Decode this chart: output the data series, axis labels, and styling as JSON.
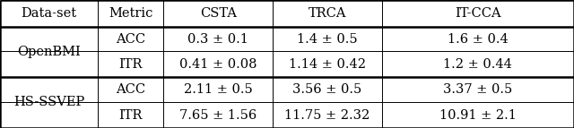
{
  "col_headers": [
    "Data-set",
    "Metric",
    "CSTA",
    "TRCA",
    "IT-CCA"
  ],
  "row_groups": [
    {
      "group_label": "OpenBMI",
      "rows": [
        [
          "ACC",
          "0.3 ± 0.1",
          "1.4 ± 0.5",
          "1.6 ± 0.4"
        ],
        [
          "ITR",
          "0.41 ± 0.08",
          "1.14 ± 0.42",
          "1.2 ± 0.44"
        ]
      ]
    },
    {
      "group_label": "HS-SSVEP",
      "rows": [
        [
          "ACC",
          "2.11 ± 0.5",
          "3.56 ± 0.5",
          "3.37 ± 0.5"
        ],
        [
          "ITR",
          "7.65 ± 1.56",
          "11.75 ± 2.32",
          "10.91 ± 2.1"
        ]
      ]
    }
  ],
  "background_color": "#ffffff",
  "font_size": 10.5,
  "lw_thick": 1.8,
  "lw_thin": 0.7
}
